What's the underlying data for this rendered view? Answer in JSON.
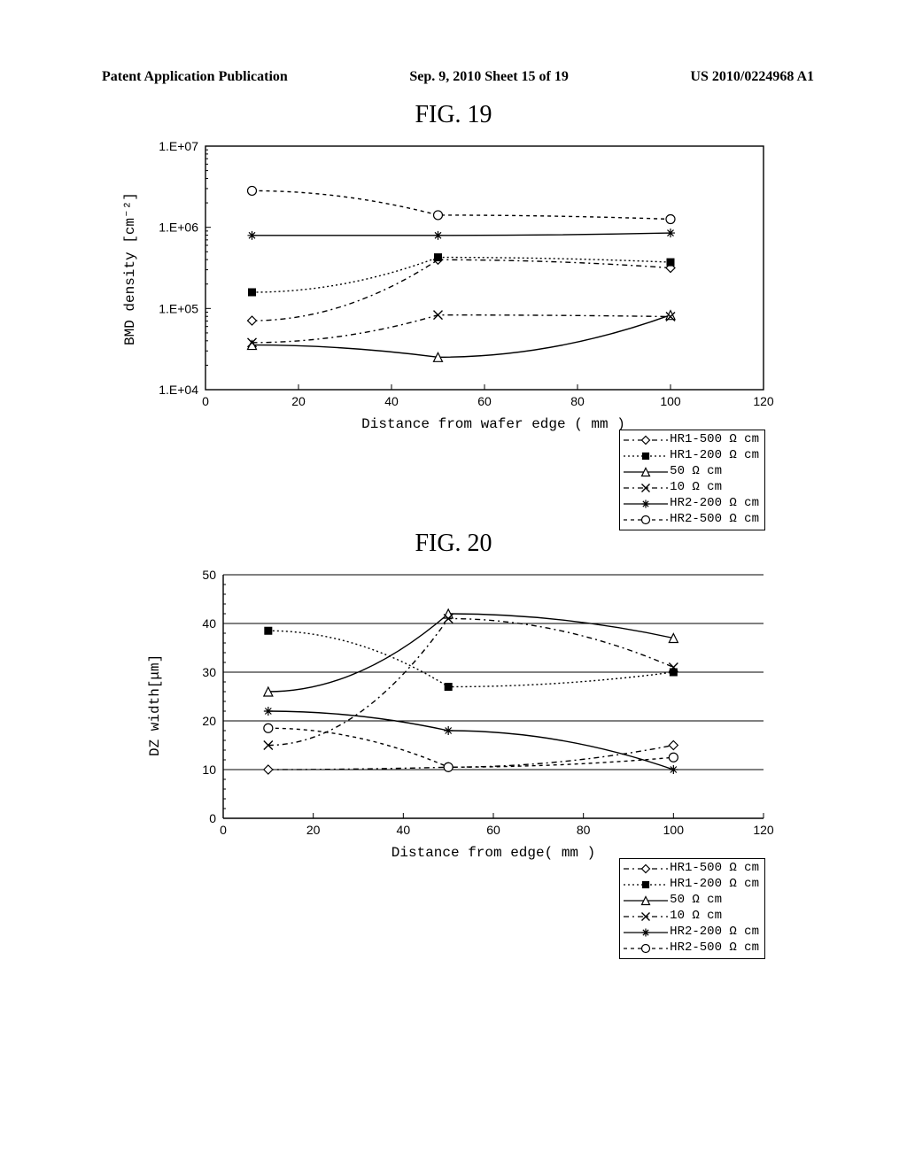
{
  "header": {
    "left": "Patent Application Publication",
    "center": "Sep. 9, 2010  Sheet 15 of 19",
    "right": "US 2010/0224968 A1"
  },
  "fig19": {
    "title": "FIG. 19",
    "ylabel": "BMD density [cm⁻²]",
    "xlabel": "Distance from wafer edge ( mm )",
    "xlim": [
      0,
      120
    ],
    "xticks": [
      0,
      20,
      40,
      60,
      80,
      100,
      120
    ],
    "ylim_exp": [
      4,
      7
    ],
    "yticks_labels": [
      "1.E+04",
      "1.E+05",
      "1.E+06",
      "1.E+07"
    ],
    "series": [
      {
        "name": "HR1-500 Ω cm",
        "marker": "diamond-open",
        "dash": "6 4 2 4",
        "color": "#000000",
        "pts": [
          [
            10,
            4.85
          ],
          [
            50,
            5.6
          ],
          [
            100,
            5.5
          ]
        ]
      },
      {
        "name": "HR1-200 Ω cm",
        "marker": "square-filled",
        "dash": "2 3",
        "color": "#000000",
        "pts": [
          [
            10,
            5.2
          ],
          [
            50,
            5.63
          ],
          [
            100,
            5.57
          ]
        ]
      },
      {
        "name": "50 Ω cm",
        "marker": "triangle-open",
        "dash": "",
        "color": "#000000",
        "pts": [
          [
            10,
            4.55
          ],
          [
            50,
            4.4
          ],
          [
            100,
            4.92
          ]
        ]
      },
      {
        "name": "10 Ω cm",
        "marker": "x",
        "dash": "6 4 2 4",
        "color": "#000000",
        "pts": [
          [
            10,
            4.58
          ],
          [
            50,
            4.92
          ],
          [
            100,
            4.9
          ]
        ]
      },
      {
        "name": "HR2-200 Ω cm",
        "marker": "asterisk",
        "dash": "",
        "color": "#000000",
        "pts": [
          [
            10,
            5.9
          ],
          [
            50,
            5.9
          ],
          [
            100,
            5.93
          ]
        ]
      },
      {
        "name": "HR2-500 Ω cm",
        "marker": "circle-open",
        "dash": "4 4",
        "color": "#000000",
        "pts": [
          [
            10,
            6.45
          ],
          [
            50,
            6.15
          ],
          [
            100,
            6.1
          ]
        ]
      }
    ]
  },
  "fig20": {
    "title": "FIG. 20",
    "ylabel": "DZ width[μm]",
    "xlabel": "Distance from edge( mm )",
    "xlim": [
      0,
      120
    ],
    "xticks": [
      0,
      20,
      40,
      60,
      80,
      100,
      120
    ],
    "ylim": [
      0,
      50
    ],
    "yticks": [
      0,
      10,
      20,
      30,
      40,
      50
    ],
    "series": [
      {
        "name": "HR1-500 Ω cm",
        "marker": "diamond-open",
        "dash": "6 4 2 4",
        "pts": [
          [
            10,
            10
          ],
          [
            50,
            10.5
          ],
          [
            100,
            15
          ]
        ]
      },
      {
        "name": "HR1-200 Ω cm",
        "marker": "square-filled",
        "dash": "2 3",
        "pts": [
          [
            10,
            38.5
          ],
          [
            50,
            27
          ],
          [
            100,
            30
          ]
        ]
      },
      {
        "name": "50 Ω cm",
        "marker": "triangle-open",
        "dash": "",
        "pts": [
          [
            10,
            26
          ],
          [
            50,
            42
          ],
          [
            100,
            37
          ]
        ]
      },
      {
        "name": "10 Ω cm",
        "marker": "x",
        "dash": "6 4 2 4",
        "pts": [
          [
            10,
            15
          ],
          [
            50,
            41
          ],
          [
            100,
            31
          ]
        ]
      },
      {
        "name": "HR2-200 Ω cm",
        "marker": "asterisk",
        "dash": "",
        "pts": [
          [
            10,
            22
          ],
          [
            50,
            18
          ],
          [
            100,
            10
          ]
        ]
      },
      {
        "name": "HR2-500 Ω cm",
        "marker": "circle-open",
        "dash": "4 4",
        "pts": [
          [
            10,
            18.5
          ],
          [
            50,
            10.5
          ],
          [
            100,
            12.5
          ]
        ]
      }
    ]
  },
  "legend_labels": [
    "HR1-500 Ω cm",
    "HR1-200 Ω cm",
    "50 Ω cm",
    "10 Ω cm",
    "HR2-200 Ω cm",
    "HR2-500 Ω cm"
  ],
  "colors": {
    "line": "#000000",
    "axis": "#000000",
    "bg": "#ffffff"
  }
}
